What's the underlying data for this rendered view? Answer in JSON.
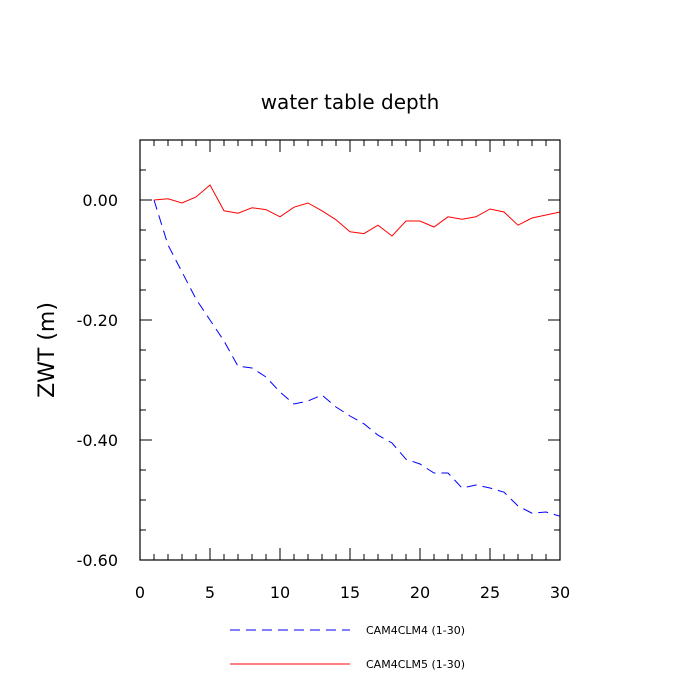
{
  "chart_data": {
    "type": "line",
    "title": "water table depth",
    "xlabel": "",
    "ylabel": "ZWT  (m)",
    "xlim": [
      0,
      30
    ],
    "ylim": [
      -0.6,
      0.1
    ],
    "xticks": [
      0,
      5,
      10,
      15,
      20,
      25,
      30
    ],
    "xtick_labels": [
      "0",
      "5",
      "10",
      "15",
      "20",
      "25",
      "30"
    ],
    "yticks": [
      0.0,
      -0.2,
      -0.4,
      -0.6
    ],
    "ytick_labels": [
      "0.00",
      "-0.20",
      "-0.40",
      "-0.60"
    ],
    "x": [
      1,
      2,
      3,
      4,
      5,
      6,
      7,
      8,
      9,
      10,
      11,
      12,
      13,
      14,
      15,
      16,
      17,
      18,
      19,
      20,
      21,
      22,
      23,
      24,
      25,
      26,
      27,
      28,
      29,
      30
    ],
    "series": [
      {
        "name": "CAM4CLM4 (1-30)",
        "color": "#0000ff",
        "style": "dashed",
        "values": [
          0.0,
          -0.075,
          -0.12,
          -0.165,
          -0.2,
          -0.235,
          -0.277,
          -0.28,
          -0.295,
          -0.32,
          -0.34,
          -0.335,
          -0.325,
          -0.345,
          -0.36,
          -0.373,
          -0.392,
          -0.405,
          -0.432,
          -0.44,
          -0.455,
          -0.455,
          -0.48,
          -0.475,
          -0.48,
          -0.487,
          -0.51,
          -0.522,
          -0.52,
          -0.527
        ]
      },
      {
        "name": "CAM4CLM5 (1-30)",
        "color": "#ff0000",
        "style": "solid",
        "values": [
          0.0,
          0.002,
          -0.005,
          0.005,
          0.025,
          -0.018,
          -0.022,
          -0.013,
          -0.016,
          -0.028,
          -0.012,
          -0.005,
          -0.018,
          -0.033,
          -0.053,
          -0.056,
          -0.042,
          -0.06,
          -0.035,
          -0.035,
          -0.045,
          -0.028,
          -0.032,
          -0.028,
          -0.015,
          -0.02,
          -0.042,
          -0.03,
          -0.025,
          -0.02
        ]
      }
    ],
    "legend_position": "bottom"
  }
}
